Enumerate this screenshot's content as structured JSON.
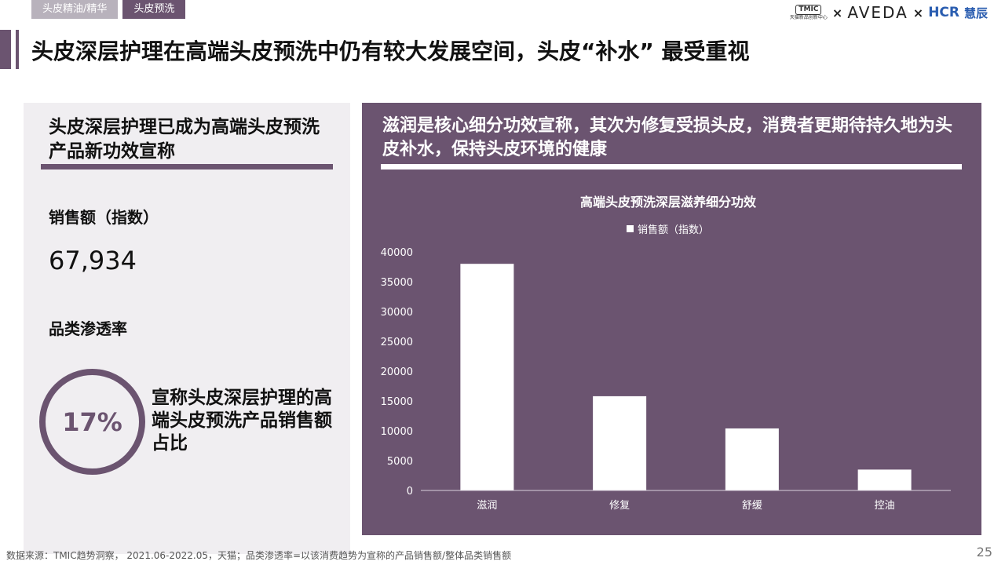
{
  "tabs": [
    {
      "label": "头皮精油/精华"
    },
    {
      "label": "头皮预洗"
    }
  ],
  "logos": {
    "tmic_badge": "TMIC",
    "tmic_sub": "天猫新品创新中心",
    "x1": "×",
    "aveda": "AVEDA",
    "x2": "×",
    "hcr": "HCR",
    "hcr_cn": "慧辰"
  },
  "page_title": "头皮深层护理在高端头皮预洗中仍有较大发展空间，头皮“补水” 最受重视",
  "left": {
    "heading": "头皮深层护理已成为高端头皮预洗产品新功效宣称",
    "sales_label": "销售额（指数）",
    "sales_value": "67,934",
    "penetration_label": "品类渗透率",
    "penetration_value": "17%",
    "penetration_desc": "宣称头皮深层护理的高端头皮预洗产品销售额占比"
  },
  "right": {
    "heading": "滋润是核心细分功效宣称，其次为修复受损头皮，消费者更期待持久地为头皮补水，保持头皮环境的健康"
  },
  "chart_data": {
    "type": "bar",
    "title": "高端头皮预洗深层滋养细分功效",
    "legend_position": "top-center",
    "categories": [
      "滋润",
      "修复",
      "舒缓",
      "控油"
    ],
    "series": [
      {
        "name": "销售额（指数）",
        "values": [
          38000,
          15800,
          10400,
          3500
        ],
        "color": "#ffffff"
      }
    ],
    "y_ticks": [
      0,
      5000,
      10000,
      15000,
      20000,
      25000,
      30000,
      35000,
      40000
    ],
    "ylim": [
      0,
      40000
    ],
    "grid": false
  },
  "footer": {
    "source": "数据来源：TMIC趋势洞察， 2021.06-2022.05，天猫；品类渗透率=以该消费趋势为宣称的产品销售额/整体品类销售额",
    "page_number": "25"
  },
  "colors": {
    "accent": "#6b5470",
    "panel_light": "#f0eef1",
    "tab_inactive": "#b8b2bc"
  }
}
